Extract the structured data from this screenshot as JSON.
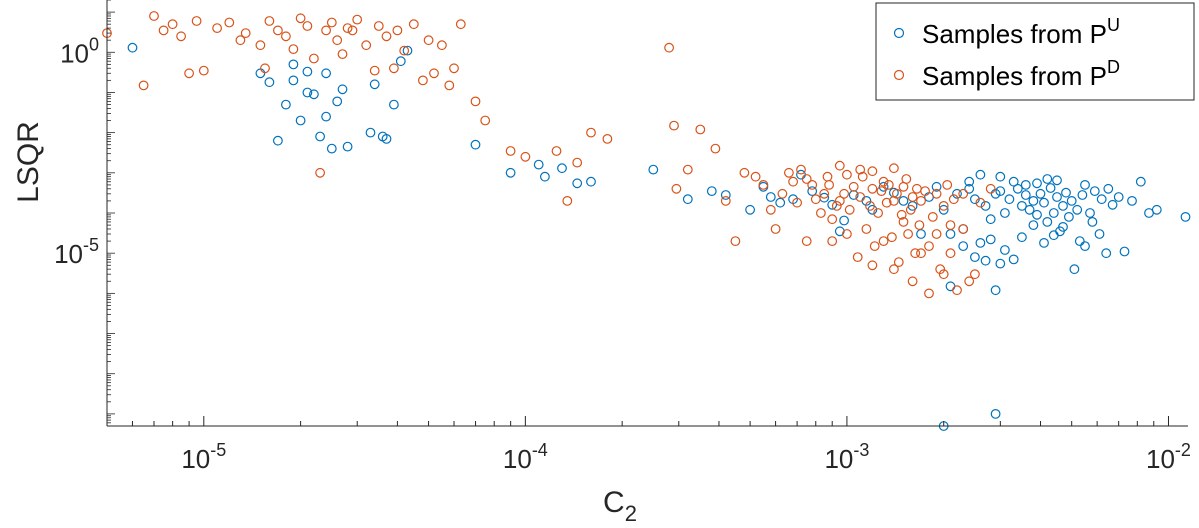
{
  "chart_data": {
    "type": "scatter",
    "xlabel": "C",
    "xlabel_sub": "2",
    "ylabel": "LSQR",
    "x_scale": "log",
    "y_scale": "log",
    "xlim": [
      5e-06,
      0.0115
    ],
    "ylim": [
      5e-10,
      20.0
    ],
    "x_ticks": [
      {
        "value": 1e-05,
        "base": "10",
        "exp": "-5"
      },
      {
        "value": 0.0001,
        "base": "10",
        "exp": "-4"
      },
      {
        "value": 0.001,
        "base": "10",
        "exp": "-3"
      },
      {
        "value": 0.01,
        "base": "10",
        "exp": "-2"
      }
    ],
    "y_ticks": [
      {
        "value": 1,
        "base": "10",
        "exp": "0"
      },
      {
        "value": 1e-05,
        "base": "10",
        "exp": "-5"
      }
    ],
    "grid": false,
    "legend_position": "top-right",
    "series": [
      {
        "name": "Samples from P",
        "name_sup": "U",
        "color": "#0072BD",
        "points": [
          [
            6e-06,
            1.3
          ],
          [
            1.5e-05,
            0.3
          ],
          [
            1.6e-05,
            0.18
          ],
          [
            1.7e-05,
            0.0063
          ],
          [
            1.8e-05,
            0.05
          ],
          [
            1.9e-05,
            0.2
          ],
          [
            1.9e-05,
            0.5
          ],
          [
            2e-05,
            0.02
          ],
          [
            2.1e-05,
            0.1
          ],
          [
            2.1e-05,
            0.33
          ],
          [
            2.2e-05,
            0.09
          ],
          [
            2.3e-05,
            0.008
          ],
          [
            2.4e-05,
            0.025
          ],
          [
            2.4e-05,
            0.3
          ],
          [
            2.5e-05,
            0.004
          ],
          [
            2.6e-05,
            0.06
          ],
          [
            2.7e-05,
            0.12
          ],
          [
            2.8e-05,
            0.0045
          ],
          [
            3.3e-05,
            0.01
          ],
          [
            3.4e-05,
            0.16
          ],
          [
            3.6e-05,
            0.008
          ],
          [
            3.7e-05,
            0.007
          ],
          [
            3.9e-05,
            0.05
          ],
          [
            4.1e-05,
            0.6
          ],
          [
            4.3e-05,
            1.1
          ],
          [
            7e-05,
            0.005
          ],
          [
            9e-05,
            0.001
          ],
          [
            0.00011,
            0.0016
          ],
          [
            0.000115,
            0.0008
          ],
          [
            0.00013,
            0.0013
          ],
          [
            0.000145,
            0.00055
          ],
          [
            0.00016,
            0.0006
          ],
          [
            0.00025,
            0.0012
          ],
          [
            0.00032,
            0.00022
          ],
          [
            0.00038,
            0.00035
          ],
          [
            0.00042,
            0.00028
          ],
          [
            0.0005,
            0.00012
          ],
          [
            0.00055,
            0.00045
          ],
          [
            0.00058,
            0.00025
          ],
          [
            0.00062,
            0.00018
          ],
          [
            0.00068,
            0.00022
          ],
          [
            0.00072,
            0.0009
          ],
          [
            0.00078,
            0.00035
          ],
          [
            0.00085,
            0.00024
          ],
          [
            0.0009,
            0.00016
          ],
          [
            0.00095,
            3.5e-05
          ],
          [
            0.00098,
            6.5e-05
          ],
          [
            0.00105,
            0.00028
          ],
          [
            0.00115,
            0.0002
          ],
          [
            0.0012,
            0.00012
          ],
          [
            0.0013,
            0.00045
          ],
          [
            0.0014,
            0.00032
          ],
          [
            0.0015,
            0.0002
          ],
          [
            0.0016,
            0.00015
          ],
          [
            0.0017,
            3e-05
          ],
          [
            0.0018,
            0.00025
          ],
          [
            0.0019,
            0.00045
          ],
          [
            0.002,
            0.00012
          ],
          [
            0.0021,
            1.5e-06
          ],
          [
            0.002,
            5e-10
          ],
          [
            0.0022,
            0.0003
          ],
          [
            0.0023,
            1.5e-05
          ],
          [
            0.0024,
            0.0004
          ],
          [
            0.0025,
            0.00022
          ],
          [
            0.0026,
            1.8e-05
          ],
          [
            0.0027,
            0.00015
          ],
          [
            0.0028,
            7e-05
          ],
          [
            0.0029,
            0.0003
          ],
          [
            0.003,
            0.00035
          ],
          [
            0.0031,
            0.0001
          ],
          [
            0.0032,
            0.00022
          ],
          [
            0.0033,
            7e-06
          ],
          [
            0.0034,
            0.0004
          ],
          [
            0.0035,
            0.00015
          ],
          [
            0.0036,
            0.00028
          ],
          [
            0.0037,
            0.00012
          ],
          [
            0.0038,
            0.0002
          ],
          [
            0.0039,
            9e-05
          ],
          [
            0.004,
            0.0003
          ],
          [
            0.0041,
            0.00018
          ],
          [
            0.0042,
            6e-05
          ],
          [
            0.0043,
            0.00042
          ],
          [
            0.0044,
            0.0001
          ],
          [
            0.0045,
            0.00025
          ],
          [
            0.0046,
            3.5e-05
          ],
          [
            0.0047,
            0.00015
          ],
          [
            0.0048,
            0.00032
          ],
          [
            0.0049,
            8e-05
          ],
          [
            0.005,
            0.0002
          ],
          [
            0.0051,
            4e-06
          ],
          [
            0.0052,
            0.00012
          ],
          [
            0.0054,
            0.00028
          ],
          [
            0.0055,
            1.5e-05
          ],
          [
            0.0057,
            0.0001
          ],
          [
            0.0059,
            0.00035
          ],
          [
            0.0062,
            0.00022
          ],
          [
            0.0064,
            1e-05
          ],
          [
            0.0067,
            0.00016
          ],
          [
            0.007,
            0.00025
          ],
          [
            0.0073,
            1.1e-05
          ],
          [
            0.0077,
            0.0002
          ],
          [
            0.0082,
            0.0006
          ],
          [
            0.0087,
            0.0001
          ],
          [
            0.0092,
            0.00012
          ],
          [
            0.0113,
            8e-05
          ],
          [
            0.0028,
            2.2e-05
          ],
          [
            0.003,
            5.5e-06
          ],
          [
            0.0027,
            6.5e-06
          ],
          [
            0.0029,
            1.2e-06
          ],
          [
            0.0029,
            1e-09
          ],
          [
            0.0021,
            3e-05
          ],
          [
            0.0023,
            4e-05
          ],
          [
            0.0025,
            8e-06
          ],
          [
            0.0031,
            1.2e-05
          ],
          [
            0.0035,
            2.5e-05
          ],
          [
            0.0038,
            5e-05
          ],
          [
            0.0041,
            1.8e-05
          ],
          [
            0.0044,
            2.8e-05
          ],
          [
            0.0047,
            4.5e-05
          ],
          [
            0.0053,
            2e-05
          ],
          [
            0.0058,
            6e-05
          ],
          [
            0.0061,
            3e-05
          ],
          [
            0.0033,
            0.0006
          ],
          [
            0.0036,
            0.0005
          ],
          [
            0.0039,
            0.00055
          ],
          [
            0.0042,
            0.0007
          ],
          [
            0.0045,
            0.00065
          ],
          [
            0.0024,
            0.0006
          ],
          [
            0.0026,
            0.0009
          ],
          [
            0.003,
            0.0008
          ],
          [
            0.0055,
            0.0005
          ],
          [
            0.0065,
            0.0004
          ]
        ]
      },
      {
        "name": "Samples from P",
        "name_sup": "D",
        "color": "#D95319",
        "points": [
          [
            5e-06,
            3.0
          ],
          [
            6.5e-06,
            0.15
          ],
          [
            7e-06,
            8.0
          ],
          [
            7.5e-06,
            3.5
          ],
          [
            8e-06,
            5.0
          ],
          [
            8.5e-06,
            2.5
          ],
          [
            9e-06,
            0.3
          ],
          [
            9.5e-06,
            6.0
          ],
          [
            1e-05,
            0.35
          ],
          [
            1.1e-05,
            4.0
          ],
          [
            1.2e-05,
            5.5
          ],
          [
            1.3e-05,
            2.0
          ],
          [
            1.35e-05,
            3.0
          ],
          [
            1.5e-05,
            1.5
          ],
          [
            1.55e-05,
            0.4
          ],
          [
            1.6e-05,
            6.0
          ],
          [
            1.7e-05,
            3.5
          ],
          [
            1.8e-05,
            2.5
          ],
          [
            1.9e-05,
            1.2
          ],
          [
            2e-05,
            7.0
          ],
          [
            2.1e-05,
            4.5
          ],
          [
            2.2e-05,
            0.7
          ],
          [
            2.3e-05,
            0.001
          ],
          [
            2.4e-05,
            3.5
          ],
          [
            2.5e-05,
            5.5
          ],
          [
            2.6e-05,
            2.0
          ],
          [
            2.7e-05,
            0.9
          ],
          [
            2.8e-05,
            4.0
          ],
          [
            2.9e-05,
            3.5
          ],
          [
            3e-05,
            6.5
          ],
          [
            3.2e-05,
            1.5
          ],
          [
            3.4e-05,
            0.35
          ],
          [
            3.5e-05,
            4.5
          ],
          [
            3.7e-05,
            2.5
          ],
          [
            3.9e-05,
            0.4
          ],
          [
            4e-05,
            3.5
          ],
          [
            4.2e-05,
            1.1
          ],
          [
            4.5e-05,
            5.0
          ],
          [
            4.8e-05,
            0.2
          ],
          [
            5e-05,
            2.0
          ],
          [
            5.2e-05,
            0.3
          ],
          [
            5.5e-05,
            1.5
          ],
          [
            5.8e-05,
            0.15
          ],
          [
            6e-05,
            0.4
          ],
          [
            6.3e-05,
            5.0
          ],
          [
            7e-05,
            0.06
          ],
          [
            7.5e-05,
            0.02
          ],
          [
            9e-05,
            0.0035
          ],
          [
            0.0001,
            0.0025
          ],
          [
            0.000125,
            0.0035
          ],
          [
            0.000135,
            0.0002
          ],
          [
            0.000145,
            0.0018
          ],
          [
            0.00016,
            0.01
          ],
          [
            0.00018,
            0.007
          ],
          [
            0.00028,
            1.3
          ],
          [
            0.00029,
            0.015
          ],
          [
            0.000295,
            0.0004
          ],
          [
            0.00032,
            0.0012
          ],
          [
            0.00035,
            0.012
          ],
          [
            0.00039,
            0.004
          ],
          [
            0.00042,
            0.0002
          ],
          [
            0.00045,
            2e-05
          ],
          [
            0.00048,
            0.001
          ],
          [
            0.00052,
            0.0008
          ],
          [
            0.00055,
            0.0005
          ],
          [
            0.00058,
            0.00012
          ],
          [
            0.0006,
            4e-05
          ],
          [
            0.00063,
            0.0003
          ],
          [
            0.00066,
            0.001
          ],
          [
            0.0007,
            0.00018
          ],
          [
            0.00072,
            0.0012
          ],
          [
            0.00075,
            2e-05
          ],
          [
            0.00078,
            0.0005
          ],
          [
            0.0008,
            0.00022
          ],
          [
            0.00083,
            0.0001
          ],
          [
            0.00085,
            0.0003
          ],
          [
            0.00088,
            0.0005
          ],
          [
            0.0009,
            7e-05
          ],
          [
            0.00093,
            0.00015
          ],
          [
            0.00095,
            0.0002
          ],
          [
            0.00098,
            0.0003
          ],
          [
            0.001,
            0.0009
          ],
          [
            0.00102,
            0.00012
          ],
          [
            0.00105,
            0.00045
          ],
          [
            0.00108,
            8e-06
          ],
          [
            0.0011,
            0.00025
          ],
          [
            0.00112,
            0.0008
          ],
          [
            0.00115,
            4e-05
          ],
          [
            0.00118,
            0.00015
          ],
          [
            0.0012,
            0.0004
          ],
          [
            0.00122,
            1.5e-05
          ],
          [
            0.00125,
            0.0001
          ],
          [
            0.00128,
            0.00035
          ],
          [
            0.0013,
            0.0006
          ],
          [
            0.00133,
            0.00018
          ],
          [
            0.00135,
            0.0005
          ],
          [
            0.00138,
            2.5e-05
          ],
          [
            0.0014,
            0.0002
          ],
          [
            0.00143,
            0.0003
          ],
          [
            0.00145,
            6e-06
          ],
          [
            0.00148,
            9e-05
          ],
          [
            0.0015,
            0.00045
          ],
          [
            0.00153,
            0.0007
          ],
          [
            0.00155,
            3e-05
          ],
          [
            0.00158,
            0.00012
          ],
          [
            0.0016,
            0.00025
          ],
          [
            0.00163,
            1e-05
          ],
          [
            0.00165,
            0.0004
          ],
          [
            0.00168,
            5e-05
          ],
          [
            0.0017,
            0.0002
          ],
          [
            0.00175,
            0.00035
          ],
          [
            0.0018,
            1.5e-05
          ],
          [
            0.00185,
            8e-05
          ],
          [
            0.0019,
            0.0003
          ],
          [
            0.00195,
            4e-06
          ],
          [
            0.002,
            0.00015
          ],
          [
            0.00205,
            0.0005
          ],
          [
            0.0021,
            5e-05
          ],
          [
            0.00215,
            0.00022
          ],
          [
            0.0022,
            1.2e-06
          ],
          [
            0.0023,
            0.0003
          ],
          [
            0.0024,
            2e-06
          ],
          [
            0.0025,
            3e-06
          ],
          [
            0.0026,
            0.00018
          ],
          [
            0.0028,
            0.0004
          ],
          [
            0.0011,
            0.0012
          ],
          [
            0.00095,
            0.0015
          ],
          [
            0.0012,
            0.0011
          ],
          [
            0.0014,
            0.0013
          ],
          [
            0.00087,
            0.0008
          ],
          [
            0.00075,
            0.0007
          ],
          [
            0.00068,
            0.0006
          ],
          [
            0.0013,
            2e-05
          ],
          [
            0.0015,
            6e-05
          ],
          [
            0.0017,
            1e-05
          ],
          [
            0.0019,
            3e-05
          ],
          [
            0.0021,
            1e-05
          ],
          [
            0.0023,
            4e-05
          ],
          [
            0.0016,
            2e-06
          ],
          [
            0.0014,
            4e-06
          ],
          [
            0.0012,
            5e-06
          ],
          [
            0.001,
            3e-05
          ],
          [
            0.0009,
            2e-05
          ],
          [
            0.0018,
            1e-06
          ],
          [
            0.002,
            3e-06
          ]
        ]
      }
    ]
  }
}
